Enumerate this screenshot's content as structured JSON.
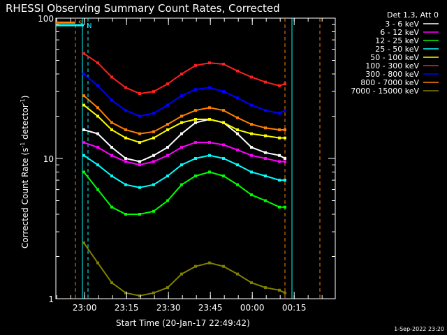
{
  "chart_data": {
    "type": "line",
    "title": "RHESSI Observing Summary Count Rates, Corrected",
    "xlabel": "Start Time (20-Jan-17 22:49:42)",
    "ylabel": "Corrected Count Rate (s⁻¹ detector⁻¹)",
    "ylabel_parts": {
      "main": "Corrected Count Rate (s",
      "sup1": "-1",
      "mid": " detector",
      "sup2": "-1",
      "end": ")"
    },
    "x_unit": "minutes since 22:49:42",
    "xlim": [
      0,
      100
    ],
    "ylim": [
      1,
      100
    ],
    "y_scale": "log",
    "x_tick_labels": [
      "23:00",
      "23:15",
      "23:30",
      "23:45",
      "00:00",
      "00:15"
    ],
    "x_tick_values": [
      10.3,
      25.3,
      40.3,
      55.3,
      70.3,
      85.3
    ],
    "y_tick_labels": [
      "1",
      "10",
      "100"
    ],
    "y_tick_values": [
      1,
      10,
      100
    ],
    "legend_title": "Det 1,3, Att 0",
    "legend_position": "outside-right",
    "stamp": "1-Sep-2022 23:20",
    "markers": {
      "S": {
        "label": "S",
        "x": [
          0,
          7
        ],
        "y": 93,
        "color": "#ff8000"
      },
      "N": {
        "label": "N",
        "x": [
          0,
          10
        ],
        "y": 89,
        "color": "#00ffff"
      }
    },
    "vertical_lines": [
      {
        "x": 7,
        "color": "#ff8000",
        "style": "dashed"
      },
      {
        "x": 11.5,
        "color": "#00ffff",
        "style": "dashed"
      },
      {
        "x": 9.5,
        "color": "#00ffff",
        "style": "solid"
      },
      {
        "x": 82,
        "color": "#ff8000",
        "style": "dashed"
      },
      {
        "x": 84.5,
        "color": "#00ffff",
        "style": "solid"
      },
      {
        "x": 94.5,
        "color": "#ff8000",
        "style": "dashed"
      }
    ],
    "series": [
      {
        "name": "3 - 6 keV",
        "color": "#ffffff",
        "x": [
          10,
          15,
          20,
          25,
          30,
          35,
          40,
          45,
          50,
          55,
          60,
          65,
          70,
          75,
          80,
          82
        ],
        "y": [
          16,
          15,
          12,
          10,
          9.5,
          10.5,
          12,
          15,
          18,
          19,
          18,
          15,
          12,
          11,
          10.5,
          10
        ]
      },
      {
        "name": "6 - 12 keV",
        "color": "#ff00ff",
        "x": [
          10,
          15,
          20,
          25,
          30,
          35,
          40,
          45,
          50,
          55,
          60,
          65,
          70,
          75,
          80,
          82
        ],
        "y": [
          13,
          12,
          10.5,
          9.5,
          9,
          9.5,
          10.5,
          12,
          13,
          13,
          12.5,
          11.5,
          10.5,
          10,
          9.5,
          9.5
        ]
      },
      {
        "name": "12 - 25 keV",
        "color": "#00ff00",
        "x": [
          10,
          15,
          20,
          25,
          30,
          35,
          40,
          45,
          50,
          55,
          60,
          65,
          70,
          75,
          80,
          82
        ],
        "y": [
          8,
          6,
          4.5,
          4,
          4,
          4.2,
          5,
          6.5,
          7.5,
          8,
          7.5,
          6.5,
          5.5,
          5,
          4.5,
          4.5
        ]
      },
      {
        "name": "25 - 50 keV",
        "color": "#00ffff",
        "x": [
          10,
          15,
          20,
          25,
          30,
          35,
          40,
          45,
          50,
          55,
          60,
          65,
          70,
          75,
          80,
          82
        ],
        "y": [
          10.5,
          9,
          7.5,
          6.5,
          6.2,
          6.5,
          7.5,
          9,
          10,
          10.5,
          10,
          9,
          8,
          7.5,
          7,
          7
        ]
      },
      {
        "name": "50 - 100 keV",
        "color": "#ffff00",
        "x": [
          10,
          15,
          20,
          25,
          30,
          35,
          40,
          45,
          50,
          55,
          60,
          65,
          70,
          75,
          80,
          82
        ],
        "y": [
          24,
          20,
          16,
          14,
          13,
          14,
          16,
          18,
          19,
          19,
          18,
          16,
          15,
          14.5,
          14,
          14
        ]
      },
      {
        "name": "100 - 300 keV",
        "color": "#ff2020",
        "x": [
          10,
          15,
          20,
          25,
          30,
          35,
          40,
          45,
          50,
          55,
          60,
          65,
          70,
          75,
          80,
          82
        ],
        "y": [
          56,
          48,
          38,
          32,
          29,
          30,
          34,
          40,
          46,
          48,
          47,
          42,
          38,
          35,
          33,
          34
        ]
      },
      {
        "name": "300 - 800 keV",
        "color": "#0000ff",
        "x": [
          10,
          15,
          20,
          25,
          30,
          35,
          40,
          45,
          50,
          55,
          60,
          65,
          70,
          75,
          80,
          82
        ],
        "y": [
          40,
          33,
          26,
          22,
          20,
          21,
          24,
          28,
          31,
          32,
          30,
          27,
          24,
          22,
          21,
          22
        ]
      },
      {
        "name": "800 - 7000 keV",
        "color": "#ff8000",
        "x": [
          10,
          15,
          20,
          25,
          30,
          35,
          40,
          45,
          50,
          55,
          60,
          65,
          70,
          75,
          80,
          82
        ],
        "y": [
          28,
          23,
          18,
          16,
          15,
          15.5,
          17.5,
          20,
          22,
          23,
          22,
          19.5,
          17.5,
          16.5,
          16,
          16
        ]
      },
      {
        "name": "7000 - 15000 keV",
        "color": "#808000",
        "x": [
          10,
          15,
          20,
          25,
          30,
          35,
          40,
          45,
          50,
          55,
          60,
          65,
          70,
          75,
          80,
          82
        ],
        "y": [
          2.5,
          1.8,
          1.3,
          1.1,
          1.05,
          1.1,
          1.2,
          1.5,
          1.7,
          1.8,
          1.7,
          1.5,
          1.3,
          1.2,
          1.15,
          1.1
        ]
      }
    ]
  }
}
